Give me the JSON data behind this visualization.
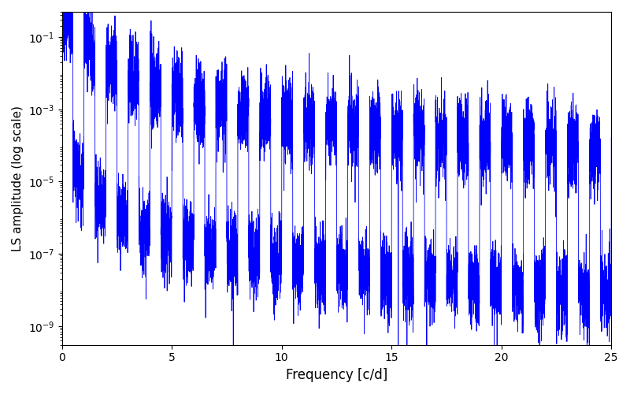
{
  "xlabel": "Frequency [c/d]",
  "ylabel": "LS amplitude (log scale)",
  "line_color": "#0000ff",
  "line_width": 0.6,
  "xlim": [
    0,
    25
  ],
  "ylim": [
    3e-10,
    0.5
  ],
  "yscale": "log",
  "figsize": [
    8.0,
    5.0
  ],
  "dpi": 100,
  "freq_min": 0.0,
  "freq_max": 25.0,
  "n_points": 8000,
  "seed": 12345,
  "yticks": [
    1e-09,
    1e-07,
    1e-05,
    0.001,
    0.1
  ],
  "xticks": [
    0,
    5,
    10,
    15,
    20,
    25
  ],
  "xlabel_fontsize": 12,
  "ylabel_fontsize": 11
}
